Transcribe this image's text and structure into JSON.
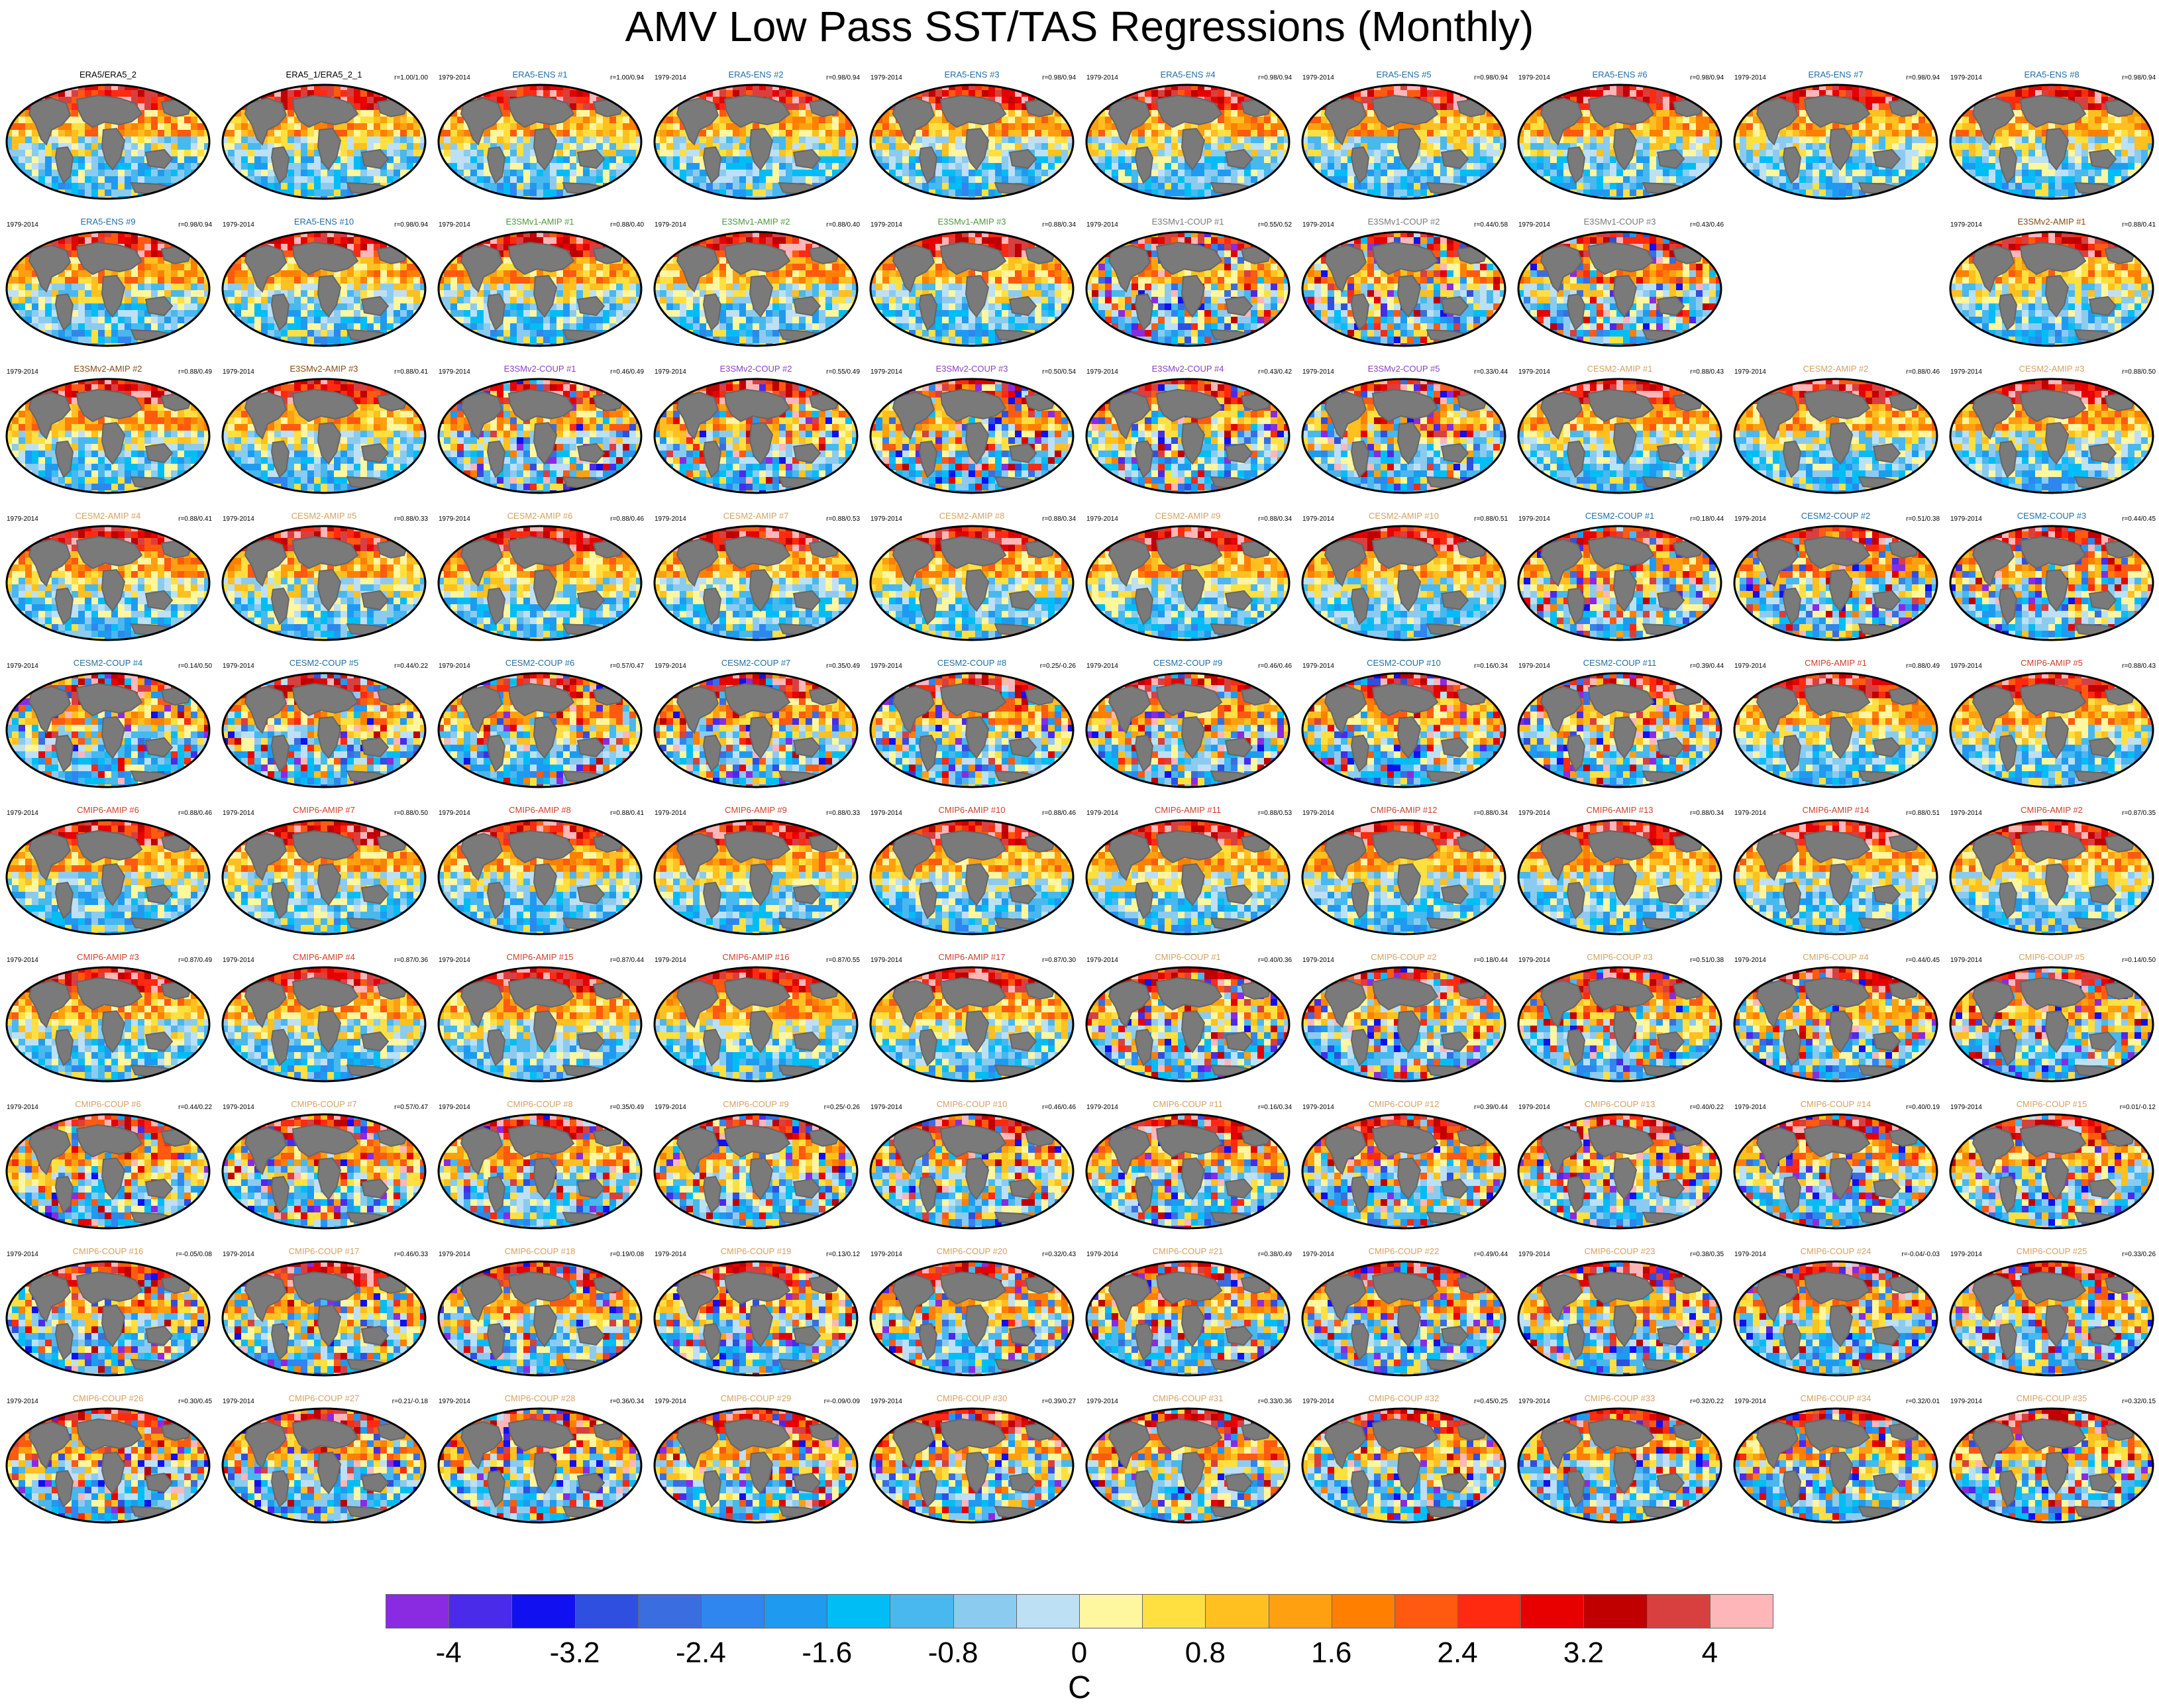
{
  "title": "AMV Low Pass SST/TAS Regressions (Monthly)",
  "colorbar": {
    "unit": "C",
    "tick_labels": [
      "-4",
      "-3.2",
      "-2.4",
      "-1.6",
      "-0.8",
      "0",
      "0.8",
      "1.6",
      "2.4",
      "3.2",
      "4"
    ],
    "colors": [
      "#8a2be2",
      "#4b2bea",
      "#1010f0",
      "#2f4fe0",
      "#3a6ee0",
      "#2f86ee",
      "#1e9bf0",
      "#00bdf5",
      "#48b8ee",
      "#8ccbf0",
      "#bde0f5",
      "#fff6a0",
      "#ffe040",
      "#ffc020",
      "#ffa010",
      "#ff8000",
      "#ff5a10",
      "#ff2a10",
      "#e60000",
      "#c00000",
      "#d84040",
      "#ffb6b8"
    ]
  },
  "panels": [
    {
      "years": "",
      "label": "ERA5/ERA5_2",
      "corr": "",
      "label_color": "#000000"
    },
    {
      "years": "",
      "label": "ERA5_1/ERA5_2_1",
      "corr": "r=1.00/1.00",
      "label_color": "#000000"
    },
    {
      "years": "1979-2014",
      "label": "ERA5-ENS   #1",
      "corr": "r=1.00/0.94",
      "label_color": "#1f6fa8"
    },
    {
      "years": "1979-2014",
      "label": "ERA5-ENS   #2",
      "corr": "r=0.98/0.94",
      "label_color": "#1f6fa8"
    },
    {
      "years": "1979-2014",
      "label": "ERA5-ENS   #3",
      "corr": "r=0.98/0.94",
      "label_color": "#1f6fa8"
    },
    {
      "years": "1979-2014",
      "label": "ERA5-ENS   #4",
      "corr": "r=0.98/0.94",
      "label_color": "#1f6fa8"
    },
    {
      "years": "1979-2014",
      "label": "ERA5-ENS   #5",
      "corr": "r=0.98/0.94",
      "label_color": "#1f6fa8"
    },
    {
      "years": "1979-2014",
      "label": "ERA5-ENS   #6",
      "corr": "r=0.98/0.94",
      "label_color": "#1f6fa8"
    },
    {
      "years": "1979-2014",
      "label": "ERA5-ENS   #7",
      "corr": "r=0.98/0.94",
      "label_color": "#1f6fa8"
    },
    {
      "years": "1979-2014",
      "label": "ERA5-ENS   #8",
      "corr": "r=0.98/0.94",
      "label_color": "#1f6fa8"
    },
    {
      "years": "1979-2014",
      "label": "ERA5-ENS   #9",
      "corr": "r=0.98/0.94",
      "label_color": "#1f6fa8"
    },
    {
      "years": "1979-2014",
      "label": "ERA5-ENS   #10",
      "corr": "r=0.98/0.94",
      "label_color": "#1f6fa8"
    },
    {
      "years": "1979-2014",
      "label": "E3SMv1-AMIP #1",
      "corr": "r=0.88/0.40",
      "label_color": "#4f9a3a"
    },
    {
      "years": "1979-2014",
      "label": "E3SMv1-AMIP #2",
      "corr": "r=0.88/0.40",
      "label_color": "#4f9a3a"
    },
    {
      "years": "1979-2014",
      "label": "E3SMv1-AMIP #3",
      "corr": "r=0.88/0.34",
      "label_color": "#4f9a3a"
    },
    {
      "years": "1979-2014",
      "label": "E3SMv1-COUP #1",
      "corr": "r=0.55/0.52",
      "label_color": "#7a7a7a"
    },
    {
      "years": "1979-2014",
      "label": "E3SMv1-COUP #2",
      "corr": "r=0.44/0.58",
      "label_color": "#7a7a7a"
    },
    {
      "years": "1979-2014",
      "label": "E3SMv1-COUP #3",
      "corr": "r=0.43/0.46",
      "label_color": "#7a7a7a"
    },
    null,
    {
      "years": "1979-2014",
      "label": "E3SMv2-AMIP #1",
      "corr": "r=0.88/0.41",
      "label_color": "#8a4a10"
    },
    {
      "years": "1979-2014",
      "label": "E3SMv2-AMIP #2",
      "corr": "r=0.88/0.49",
      "label_color": "#8a4a10"
    },
    {
      "years": "1979-2014",
      "label": "E3SMv2-AMIP #3",
      "corr": "r=0.88/0.41",
      "label_color": "#8a4a10"
    },
    {
      "years": "1979-2014",
      "label": "E3SMv2-COUP #1",
      "corr": "r=0.46/0.49",
      "label_color": "#8a3fc8"
    },
    {
      "years": "1979-2014",
      "label": "E3SMv2-COUP #2",
      "corr": "r=0.55/0.49",
      "label_color": "#8a3fc8"
    },
    {
      "years": "1979-2014",
      "label": "E3SMv2-COUP #3",
      "corr": "r=0.50/0.54",
      "label_color": "#8a3fc8"
    },
    {
      "years": "1979-2014",
      "label": "E3SMv2-COUP #4",
      "corr": "r=0.43/0.42",
      "label_color": "#8a3fc8"
    },
    {
      "years": "1979-2014",
      "label": "E3SMv2-COUP #5",
      "corr": "r=0.33/0.44",
      "label_color": "#8a3fc8"
    },
    {
      "years": "1979-2014",
      "label": "CESM2-AMIP #1",
      "corr": "r=0.88/0.43",
      "label_color": "#d8a060"
    },
    {
      "years": "1979-2014",
      "label": "CESM2-AMIP #2",
      "corr": "r=0.88/0.46",
      "label_color": "#d8a060"
    },
    {
      "years": "1979-2014",
      "label": "CESM2-AMIP #3",
      "corr": "r=0.88/0.50",
      "label_color": "#d8a060"
    },
    {
      "years": "1979-2014",
      "label": "CESM2-AMIP #4",
      "corr": "r=0.88/0.41",
      "label_color": "#d8a060"
    },
    {
      "years": "1979-2014",
      "label": "CESM2-AMIP #5",
      "corr": "r=0.88/0.33",
      "label_color": "#d8a060"
    },
    {
      "years": "1979-2014",
      "label": "CESM2-AMIP #6",
      "corr": "r=0.88/0.46",
      "label_color": "#d8a060"
    },
    {
      "years": "1979-2014",
      "label": "CESM2-AMIP #7",
      "corr": "r=0.88/0.53",
      "label_color": "#d8a060"
    },
    {
      "years": "1979-2014",
      "label": "CESM2-AMIP #8",
      "corr": "r=0.88/0.34",
      "label_color": "#d8a060"
    },
    {
      "years": "1979-2014",
      "label": "CESM2-AMIP #9",
      "corr": "r=0.88/0.34",
      "label_color": "#d8a060"
    },
    {
      "years": "1979-2014",
      "label": "CESM2-AMIP #10",
      "corr": "r=0.88/0.51",
      "label_color": "#d8a060"
    },
    {
      "years": "1979-2014",
      "label": "CESM2-COUP #1",
      "corr": "r=0.18/0.44",
      "label_color": "#1f6fa8"
    },
    {
      "years": "1979-2014",
      "label": "CESM2-COUP #2",
      "corr": "r=0.51/0.38",
      "label_color": "#1f6fa8"
    },
    {
      "years": "1979-2014",
      "label": "CESM2-COUP #3",
      "corr": "r=0.44/0.45",
      "label_color": "#1f6fa8"
    },
    {
      "years": "1979-2014",
      "label": "CESM2-COUP #4",
      "corr": "r=0.14/0.50",
      "label_color": "#1f6fa8"
    },
    {
      "years": "1979-2014",
      "label": "CESM2-COUP #5",
      "corr": "r=0.44/0.22",
      "label_color": "#1f6fa8"
    },
    {
      "years": "1979-2014",
      "label": "CESM2-COUP #6",
      "corr": "r=0.57/0.47",
      "label_color": "#1f6fa8"
    },
    {
      "years": "1979-2014",
      "label": "CESM2-COUP #7",
      "corr": "r=0.35/0.49",
      "label_color": "#1f6fa8"
    },
    {
      "years": "1979-2014",
      "label": "CESM2-COUP #8",
      "corr": "r=0.25/-0.26",
      "label_color": "#1f6fa8"
    },
    {
      "years": "1979-2014",
      "label": "CESM2-COUP #9",
      "corr": "r=0.46/0.46",
      "label_color": "#1f6fa8"
    },
    {
      "years": "1979-2014",
      "label": "CESM2-COUP #10",
      "corr": "r=0.16/0.34",
      "label_color": "#1f6fa8"
    },
    {
      "years": "1979-2014",
      "label": "CESM2-COUP #11",
      "corr": "r=0.39/0.44",
      "label_color": "#1f6fa8"
    },
    {
      "years": "1979-2014",
      "label": "CMIP6-AMIP #1",
      "corr": "r=0.88/0.49",
      "label_color": "#d0402a"
    },
    {
      "years": "1979-2014",
      "label": "CMIP6-AMIP #5",
      "corr": "r=0.88/0.43",
      "label_color": "#d0402a"
    },
    {
      "years": "1979-2014",
      "label": "CMIP6-AMIP #6",
      "corr": "r=0.88/0.46",
      "label_color": "#d0402a"
    },
    {
      "years": "1979-2014",
      "label": "CMIP6-AMIP #7",
      "corr": "r=0.88/0.50",
      "label_color": "#d0402a"
    },
    {
      "years": "1979-2014",
      "label": "CMIP6-AMIP #8",
      "corr": "r=0.88/0.41",
      "label_color": "#d0402a"
    },
    {
      "years": "1979-2014",
      "label": "CMIP6-AMIP #9",
      "corr": "r=0.88/0.33",
      "label_color": "#d0402a"
    },
    {
      "years": "1979-2014",
      "label": "CMIP6-AMIP #10",
      "corr": "r=0.88/0.46",
      "label_color": "#d0402a"
    },
    {
      "years": "1979-2014",
      "label": "CMIP6-AMIP #11",
      "corr": "r=0.88/0.53",
      "label_color": "#d0402a"
    },
    {
      "years": "1979-2014",
      "label": "CMIP6-AMIP #12",
      "corr": "r=0.88/0.34",
      "label_color": "#d0402a"
    },
    {
      "years": "1979-2014",
      "label": "CMIP6-AMIP #13",
      "corr": "r=0.88/0.34",
      "label_color": "#d0402a"
    },
    {
      "years": "1979-2014",
      "label": "CMIP6-AMIP #14",
      "corr": "r=0.88/0.51",
      "label_color": "#d0402a"
    },
    {
      "years": "1979-2014",
      "label": "CMIP6-AMIP #2",
      "corr": "r=0.87/0.35",
      "label_color": "#d0402a"
    },
    {
      "years": "1979-2014",
      "label": "CMIP6-AMIP #3",
      "corr": "r=0.87/0.49",
      "label_color": "#d0402a"
    },
    {
      "years": "1979-2014",
      "label": "CMIP6-AMIP #4",
      "corr": "r=0.87/0.36",
      "label_color": "#d0402a"
    },
    {
      "years": "1979-2014",
      "label": "CMIP6-AMIP #15",
      "corr": "r=0.87/0.44",
      "label_color": "#d0402a"
    },
    {
      "years": "1979-2014",
      "label": "CMIP6-AMIP #16",
      "corr": "r=0.87/0.55",
      "label_color": "#d0402a"
    },
    {
      "years": "1979-2014",
      "label": "CMIP6-AMIP #17",
      "corr": "r=0.87/0.30",
      "label_color": "#d0402a"
    },
    {
      "years": "1979-2014",
      "label": "CMIP6-COUP #1",
      "corr": "r=0.40/0.36",
      "label_color": "#d8a060"
    },
    {
      "years": "1979-2014",
      "label": "CMIP6-COUP #2",
      "corr": "r=0.18/0.44",
      "label_color": "#d8a060"
    },
    {
      "years": "1979-2014",
      "label": "CMIP6-COUP #3",
      "corr": "r=0.51/0.38",
      "label_color": "#d8a060"
    },
    {
      "years": "1979-2014",
      "label": "CMIP6-COUP #4",
      "corr": "r=0.44/0.45",
      "label_color": "#d8a060"
    },
    {
      "years": "1979-2014",
      "label": "CMIP6-COUP #5",
      "corr": "r=0.14/0.50",
      "label_color": "#d8a060"
    },
    {
      "years": "1979-2014",
      "label": "CMIP6-COUP #6",
      "corr": "r=0.44/0.22",
      "label_color": "#d8a060"
    },
    {
      "years": "1979-2014",
      "label": "CMIP6-COUP #7",
      "corr": "r=0.57/0.47",
      "label_color": "#d8a060"
    },
    {
      "years": "1979-2014",
      "label": "CMIP6-COUP #8",
      "corr": "r=0.35/0.49",
      "label_color": "#d8a060"
    },
    {
      "years": "1979-2014",
      "label": "CMIP6-COUP #9",
      "corr": "r=0.25/-0.26",
      "label_color": "#d8a060"
    },
    {
      "years": "1979-2014",
      "label": "CMIP6-COUP #10",
      "corr": "r=0.46/0.46",
      "label_color": "#d8a060"
    },
    {
      "years": "1979-2014",
      "label": "CMIP6-COUP #11",
      "corr": "r=0.16/0.34",
      "label_color": "#d8a060"
    },
    {
      "years": "1979-2014",
      "label": "CMIP6-COUP #12",
      "corr": "r=0.39/0.44",
      "label_color": "#d8a060"
    },
    {
      "years": "1979-2014",
      "label": "CMIP6-COUP #13",
      "corr": "r=0.40/0.22",
      "label_color": "#d8a060"
    },
    {
      "years": "1979-2014",
      "label": "CMIP6-COUP #14",
      "corr": "r=0.40/0.19",
      "label_color": "#d8a060"
    },
    {
      "years": "1979-2014",
      "label": "CMIP6-COUP #15",
      "corr": "r=0.01/-0.12",
      "label_color": "#d8a060"
    },
    {
      "years": "1979-2014",
      "label": "CMIP6-COUP #16",
      "corr": "r=-0.05/0.08",
      "label_color": "#d8a060"
    },
    {
      "years": "1979-2014",
      "label": "CMIP6-COUP #17",
      "corr": "r=0.46/0.33",
      "label_color": "#d8a060"
    },
    {
      "years": "1979-2014",
      "label": "CMIP6-COUP #18",
      "corr": "r=0.19/0.08",
      "label_color": "#d8a060"
    },
    {
      "years": "1979-2014",
      "label": "CMIP6-COUP #19",
      "corr": "r=0.13/0.12",
      "label_color": "#d8a060"
    },
    {
      "years": "1979-2014",
      "label": "CMIP6-COUP #20",
      "corr": "r=0.32/0.43",
      "label_color": "#d8a060"
    },
    {
      "years": "1979-2014",
      "label": "CMIP6-COUP #21",
      "corr": "r=0.38/0.49",
      "label_color": "#d8a060"
    },
    {
      "years": "1979-2014",
      "label": "CMIP6-COUP #22",
      "corr": "r=0.49/0.44",
      "label_color": "#d8a060"
    },
    {
      "years": "1979-2014",
      "label": "CMIP6-COUP #23",
      "corr": "r=0.38/0.35",
      "label_color": "#d8a060"
    },
    {
      "years": "1979-2014",
      "label": "CMIP6-COUP #24",
      "corr": "r=-0.04/-0.03",
      "label_color": "#d8a060"
    },
    {
      "years": "1979-2014",
      "label": "CMIP6-COUP #25",
      "corr": "r=0.33/0.26",
      "label_color": "#d8a060"
    },
    {
      "years": "1979-2014",
      "label": "CMIP6-COUP #26",
      "corr": "r=0.30/0.45",
      "label_color": "#d8a060"
    },
    {
      "years": "1979-2014",
      "label": "CMIP6-COUP #27",
      "corr": "r=0.21/-0.18",
      "label_color": "#d8a060"
    },
    {
      "years": "1979-2014",
      "label": "CMIP6-COUP #28",
      "corr": "r=0.36/0.34",
      "label_color": "#d8a060"
    },
    {
      "years": "1979-2014",
      "label": "CMIP6-COUP #29",
      "corr": "r=-0.09/0.09",
      "label_color": "#d8a060"
    },
    {
      "years": "1979-2014",
      "label": "CMIP6-COUP #30",
      "corr": "r=0.39/0.27",
      "label_color": "#d8a060"
    },
    {
      "years": "1979-2014",
      "label": "CMIP6-COUP #31",
      "corr": "r=0.33/0.36",
      "label_color": "#d8a060"
    },
    {
      "years": "1979-2014",
      "label": "CMIP6-COUP #32",
      "corr": "r=0.45/0.25",
      "label_color": "#d8a060"
    },
    {
      "years": "1979-2014",
      "label": "CMIP6-COUP #33",
      "corr": "r=0.32/0.22",
      "label_color": "#d8a060"
    },
    {
      "years": "1979-2014",
      "label": "CMIP6-COUP #34",
      "corr": "r=0.32/0.01",
      "label_color": "#d8a060"
    },
    {
      "years": "1979-2014",
      "label": "CMIP6-COUP #35",
      "corr": "r=0.32/0.15",
      "label_color": "#d8a060"
    }
  ]
}
